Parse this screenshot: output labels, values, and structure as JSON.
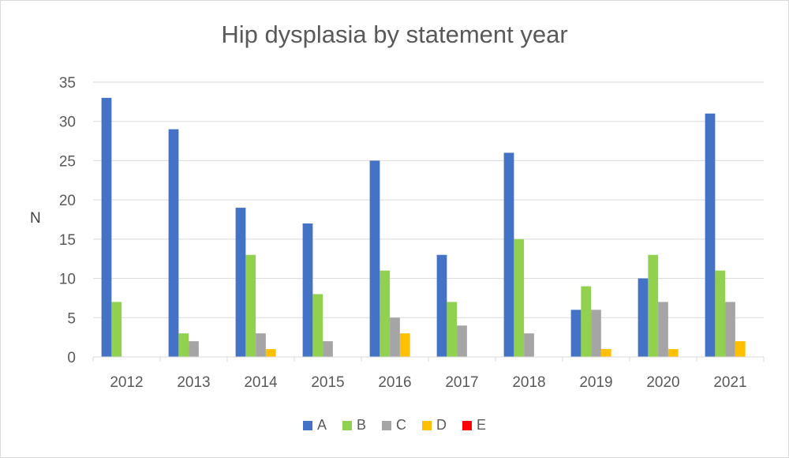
{
  "chart_data": {
    "type": "bar",
    "title": "Hip dysplasia by statement year",
    "xlabel": "",
    "ylabel": "N",
    "ylim": [
      0,
      35
    ],
    "yticks": [
      0,
      5,
      10,
      15,
      20,
      25,
      30,
      35
    ],
    "categories": [
      "2012",
      "2013",
      "2014",
      "2015",
      "2016",
      "2017",
      "2018",
      "2019",
      "2020",
      "2021"
    ],
    "legend_position": "bottom",
    "grid": true,
    "series": [
      {
        "name": "A",
        "color": "#4472c4",
        "values": [
          33,
          29,
          19,
          17,
          25,
          13,
          26,
          6,
          10,
          31
        ]
      },
      {
        "name": "B",
        "color": "#92d050",
        "values": [
          7,
          3,
          13,
          8,
          11,
          7,
          15,
          9,
          13,
          11
        ]
      },
      {
        "name": "C",
        "color": "#a5a5a5",
        "values": [
          0,
          2,
          3,
          2,
          5,
          4,
          3,
          6,
          7,
          7
        ]
      },
      {
        "name": "D",
        "color": "#ffc000",
        "values": [
          0,
          0,
          1,
          0,
          3,
          0,
          0,
          1,
          1,
          2
        ]
      },
      {
        "name": "E",
        "color": "#ff0000",
        "values": [
          0,
          0,
          0,
          0,
          0,
          0,
          0,
          0,
          0,
          0
        ]
      }
    ]
  }
}
